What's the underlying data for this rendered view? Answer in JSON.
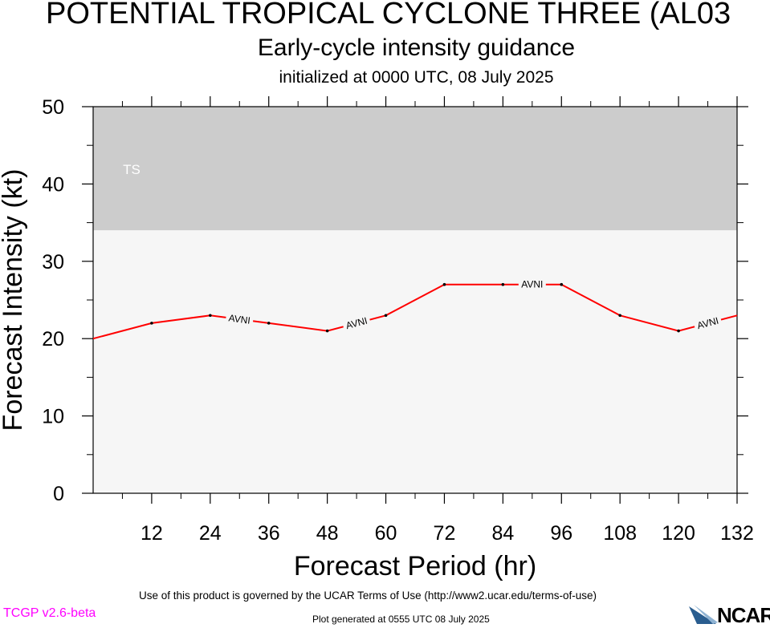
{
  "header": {
    "title": "POTENTIAL TROPICAL CYCLONE THREE (AL03",
    "subtitle": "Early-cycle intensity guidance",
    "initialized": "initialized at 0000 UTC, 08 July 2025"
  },
  "footer": {
    "terms": "Use of this product is governed by the UCAR Terms of Use (http://www2.ucar.edu/terms-of-use)",
    "generated": "Plot generated at 0555 UTC   08 July 2025",
    "version": "TCGP v2.6-beta",
    "version_color": "#ff00ff",
    "logo_text": "NCAR"
  },
  "chart_data": {
    "type": "line",
    "xlabel": "Forecast Period (hr)",
    "ylabel": "Forecast Intensity (kt)",
    "xlim": [
      0,
      132
    ],
    "ylim": [
      0,
      50
    ],
    "x_ticks": [
      12,
      24,
      36,
      48,
      60,
      72,
      84,
      96,
      108,
      120,
      132
    ],
    "y_ticks": [
      0,
      10,
      20,
      30,
      40,
      50
    ],
    "bands": [
      {
        "label": "TS",
        "from": 34,
        "to": 50,
        "color": "#cccccc"
      },
      {
        "label": "",
        "from": 0,
        "to": 34,
        "color": "#f6f6f6"
      }
    ],
    "series": [
      {
        "name": "AVNI",
        "color": "#ff0000",
        "x": [
          0,
          12,
          24,
          36,
          48,
          60,
          72,
          84,
          96,
          108,
          120,
          132
        ],
        "values": [
          20,
          22,
          23,
          22,
          21,
          23,
          27,
          27,
          27,
          23,
          21,
          23
        ]
      }
    ]
  }
}
